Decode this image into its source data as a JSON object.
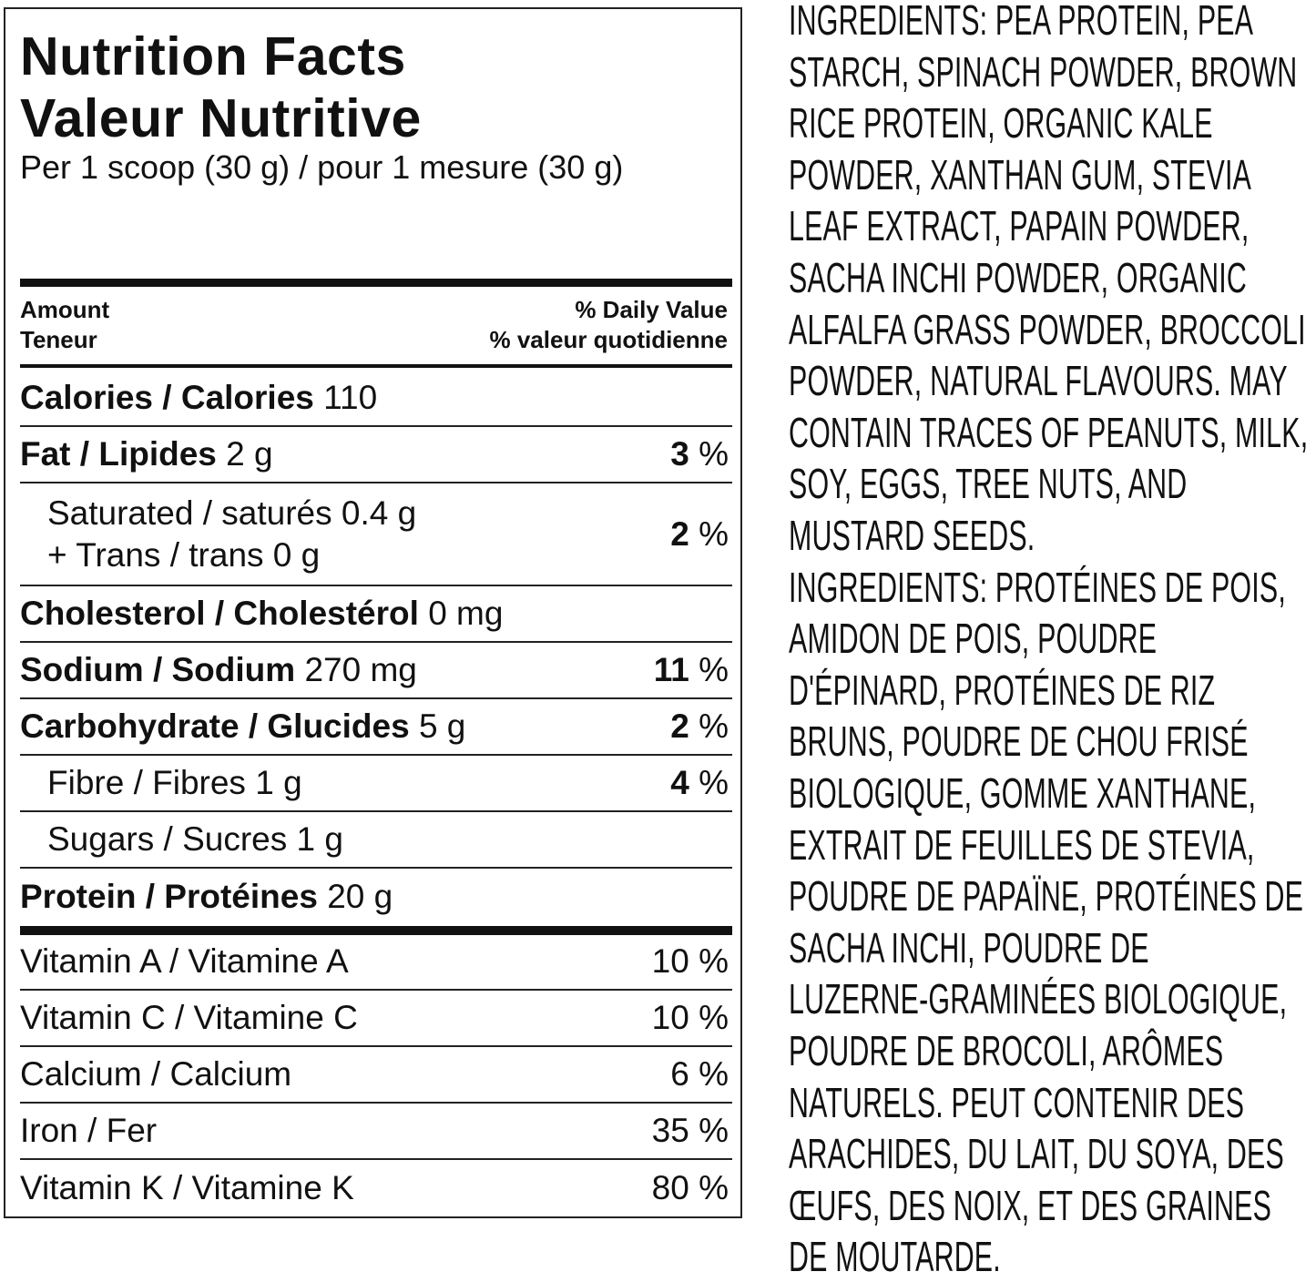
{
  "title_en": "Nutrition Facts",
  "title_fr": "Valeur Nutritive",
  "serving": "Per 1 scoop (30 g) / pour 1 mesure (30 g)",
  "header": {
    "amount": "Amount",
    "teneur": "Teneur",
    "dv_en": "% Daily Value",
    "dv_fr": "% valeur quotidienne"
  },
  "rows": [
    {
      "b": "Calories / Calories",
      "v": " 110",
      "dv": "",
      "pct": ""
    },
    {
      "b": "Fat / Lipides",
      "v": " 2 g",
      "dv": "3",
      "pct": " %"
    },
    {
      "b": "Cholesterol / Cholestérol",
      "v": " 0 mg",
      "dv": "",
      "pct": ""
    },
    {
      "b": "Sodium / Sodium",
      "v": " 270 mg",
      "dv": "11",
      "pct": " %"
    },
    {
      "b": "Carbohydrate / Glucides",
      "v": " 5 g",
      "dv": "2",
      "pct": " %"
    },
    {
      "b": "",
      "v": "Fibre / Fibres 1 g",
      "dv": "4",
      "pct": " %"
    },
    {
      "b": "",
      "v": "Sugars / Sucres 1 g",
      "dv": "",
      "pct": ""
    },
    {
      "b": "Protein / Protéines",
      "v": " 20 g",
      "dv": "",
      "pct": ""
    }
  ],
  "saturated": {
    "line1": "Saturated / saturés 0.4 g",
    "line2": "+ Trans / trans 0 g",
    "dv": "2",
    "pct": " %"
  },
  "vitamins": [
    {
      "label": "Vitamin A / Vitamine A",
      "dv": "10 %"
    },
    {
      "label": "Vitamin C / Vitamine C",
      "dv": "10 %"
    },
    {
      "label": "Calcium / Calcium",
      "dv": "6 %"
    },
    {
      "label": "Iron / Fer",
      "dv": "35 %"
    },
    {
      "label": "Vitamin K / Vitamine K",
      "dv": "80 %"
    }
  ],
  "ingredients": [
    "INGREDIENTS: PEA PROTEIN, PEA",
    "STARCH, SPINACH POWDER, BROWN",
    "RICE PROTEIN, ORGANIC KALE",
    "POWDER, XANTHAN GUM, STEVIA",
    "LEAF EXTRACT, PAPAIN POWDER,",
    "SACHA INCHI POWDER, ORGANIC",
    "ALFALFA GRASS POWDER, BROCCOLI",
    "POWDER, NATURAL FLAVOURS. MAY",
    "CONTAIN TRACES OF PEANUTS, MILK,",
    "SOY, EGGS, TREE NUTS, AND",
    "MUSTARD SEEDS.",
    "INGREDIENTS: PROTÉINES DE POIS,",
    "AMIDON DE POIS, POUDRE",
    "D'ÉPINARD, PROTÉINES DE RIZ",
    "BRUNS, POUDRE DE CHOU FRISÉ",
    "BIOLOGIQUE, GOMME XANTHANE,",
    "EXTRAIT DE FEUILLES DE STEVIA,",
    "POUDRE DE PAPAÏNE, PROTÉINES DE",
    "SACHA INCHI, POUDRE DE",
    "LUZERNE-GRAMINÉES BIOLOGIQUE,",
    "POUDRE DE BROCOLI, ARÔMES",
    "NATURELS. PEUT CONTENIR DES",
    "ARACHIDES, DU LAIT, DU SOYA, DES",
    "ŒUFS, DES NOIX, ET DES GRAINES",
    "DE MOUTARDE."
  ]
}
